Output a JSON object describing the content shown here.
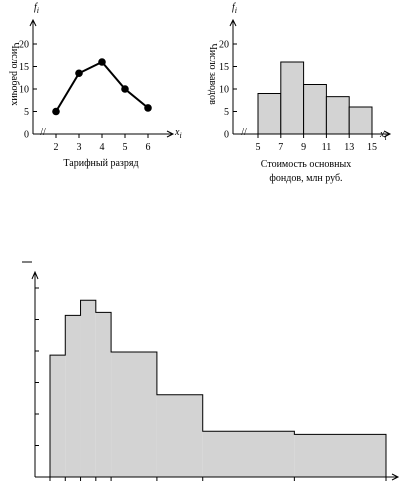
{
  "chart_data": [
    {
      "type": "line",
      "ylabel": "Число рабочих",
      "xlabel": "Тарифный разряд",
      "y_symbol": "f",
      "y_symbol_sub": "i",
      "x_symbol": "x",
      "x_symbol_sub": "i",
      "x": [
        2,
        3,
        4,
        5,
        6
      ],
      "values": [
        5,
        13.5,
        16,
        10,
        5.8
      ],
      "x_ticks": [
        "2",
        "3",
        "4",
        "5",
        "6"
      ],
      "y_ticks": [
        0,
        5,
        10,
        15,
        20
      ],
      "y_tick_labels": [
        "0",
        "5",
        "10",
        "15",
        "20"
      ],
      "ylim": [
        0,
        20
      ],
      "break_mark": "//"
    },
    {
      "type": "bar",
      "ylabel": "Число заводов",
      "xlabel_lines": [
        "Стоимость основных",
        "фондов, млн руб."
      ],
      "y_symbol": "f",
      "y_symbol_sub": "i",
      "x_symbol": "x",
      "x_symbol_sub": "i",
      "bins": [
        [
          5,
          7
        ],
        [
          7,
          9
        ],
        [
          9,
          11
        ],
        [
          11,
          13
        ],
        [
          13,
          15
        ]
      ],
      "values": [
        9,
        16,
        11,
        8.3,
        6
      ],
      "x_ticks": [
        "5",
        "7",
        "9",
        "11",
        "13",
        "15"
      ],
      "y_ticks": [
        0,
        5,
        10,
        15,
        20
      ],
      "y_tick_labels": [
        "0",
        "5",
        "10",
        "15",
        "20"
      ],
      "ylim": [
        0,
        20
      ],
      "break_mark": "//"
    },
    {
      "type": "bar",
      "bins": [
        [
          0,
          1
        ],
        [
          1,
          2
        ],
        [
          2,
          3
        ],
        [
          3,
          4
        ],
        [
          4,
          7
        ],
        [
          7,
          10
        ],
        [
          10,
          16
        ],
        [
          16,
          22
        ]
      ],
      "values": [
        4.0,
        5.3,
        5.8,
        5.4,
        4.1,
        2.7,
        1.5,
        1.4
      ],
      "ylim": [
        0,
        6.2
      ],
      "y_tick_count": 6
    }
  ]
}
